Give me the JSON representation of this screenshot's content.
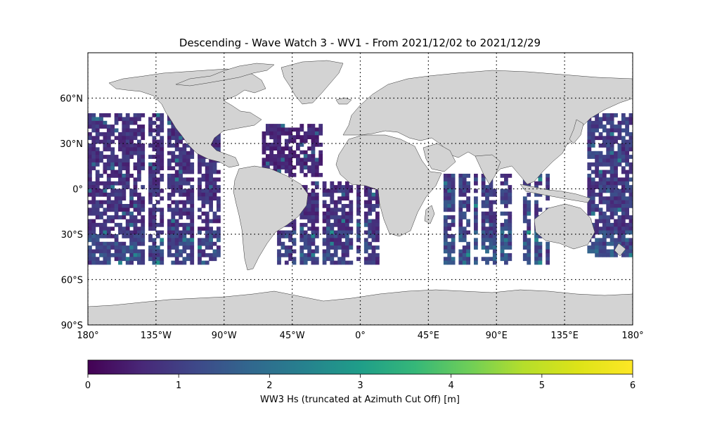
{
  "title": "Descending - Wave Watch 3 - WV1 - From 2021/12/02 to 2021/12/29",
  "map": {
    "projection": "PlateCarree",
    "lon_range": [
      -180,
      180
    ],
    "lat_range": [
      -90,
      90
    ],
    "land_color": "#d3d3d3",
    "ocean_color": "#ffffff",
    "gridlines": "dotted",
    "lat_ticks": [
      {
        "value": 60,
        "label": "60°N"
      },
      {
        "value": 30,
        "label": "30°N"
      },
      {
        "value": 0,
        "label": "0°"
      },
      {
        "value": -30,
        "label": "30°S"
      },
      {
        "value": -60,
        "label": "60°S"
      },
      {
        "value": -90,
        "label": "90°S"
      }
    ],
    "lon_ticks": [
      {
        "value": -180,
        "label": "180°"
      },
      {
        "value": -135,
        "label": "135°W"
      },
      {
        "value": -90,
        "label": "90°W"
      },
      {
        "value": -45,
        "label": "45°W"
      },
      {
        "value": 0,
        "label": "0°"
      },
      {
        "value": 45,
        "label": "45°E"
      },
      {
        "value": 90,
        "label": "90°E"
      },
      {
        "value": 135,
        "label": "135°E"
      },
      {
        "value": 180,
        "label": "180°"
      }
    ]
  },
  "colorbar": {
    "colormap": "viridis",
    "range": [
      0,
      6
    ],
    "ticks": [
      "0",
      "1",
      "2",
      "3",
      "4",
      "5",
      "6"
    ],
    "label": "WW3 Hs (truncated at Azimuth Cut Off) [m]"
  },
  "chart_data": {
    "type": "heatmap",
    "title": "Descending - Wave Watch 3 - WV1 - From 2021/12/02 to 2021/12/29",
    "value_label": "WW3 Hs (truncated at Azimuth Cut Off) [m]",
    "value_range": [
      0,
      6
    ],
    "coverage_lat": [
      -50,
      50
    ],
    "swath_regions": [
      {
        "region": "North/Central Pacific",
        "lon": [
          -180,
          -90
        ],
        "lat": [
          -50,
          50
        ],
        "typical_hs": 0.8
      },
      {
        "region": "North Atlantic",
        "lon": [
          -65,
          -25
        ],
        "lat": [
          10,
          43
        ],
        "typical_hs": 0.6
      },
      {
        "region": "South Atlantic",
        "lon": [
          -55,
          15
        ],
        "lat": [
          -50,
          5
        ],
        "typical_hs": 0.8
      },
      {
        "region": "Indian Ocean",
        "lon": [
          55,
          125
        ],
        "lat": [
          -50,
          10
        ],
        "typical_hs": 1.1
      },
      {
        "region": "West Pacific",
        "lon": [
          150,
          180
        ],
        "lat": [
          -45,
          50
        ],
        "typical_hs": 1.0
      }
    ]
  }
}
